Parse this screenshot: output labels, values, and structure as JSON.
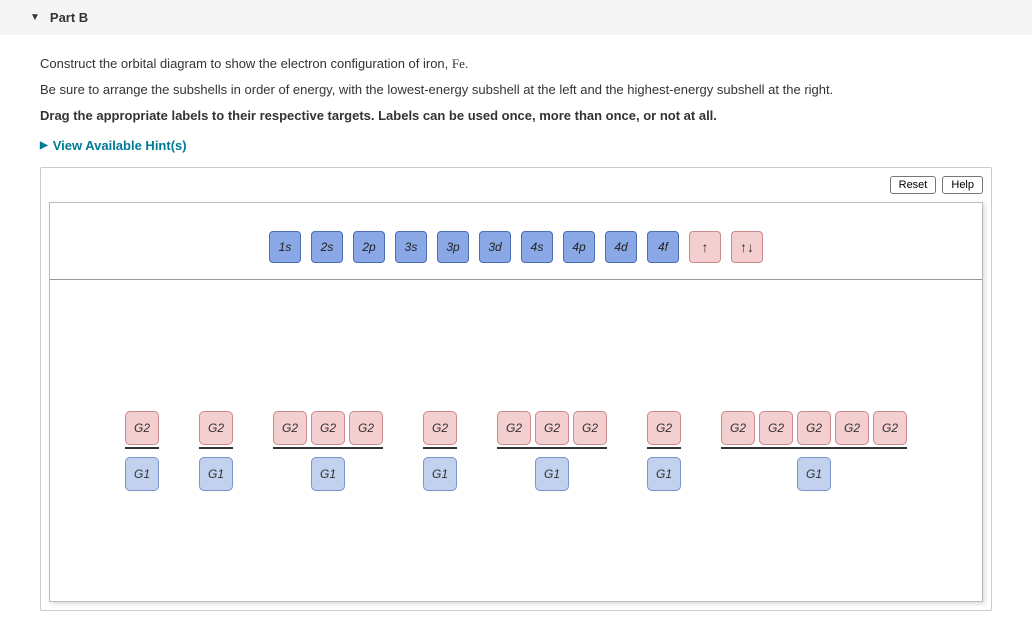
{
  "header": {
    "part_label": "Part B"
  },
  "instructions": {
    "line1_prefix": "Construct the orbital diagram to show the electron configuration of iron, ",
    "element_symbol": "Fe",
    "line1_suffix": ".",
    "line2": "Be sure to arrange the subshells in order of energy, with the lowest-energy subshell at the left and the highest-energy subshell at the right.",
    "line3": "Drag the appropriate labels to their respective targets. Labels can be used once, more than once, or not at all."
  },
  "hints": {
    "toggle_label": "View Available Hint(s)"
  },
  "toolbar": {
    "reset_label": "Reset",
    "help_label": "Help"
  },
  "palette": {
    "subshells": [
      "1s",
      "2s",
      "2p",
      "3s",
      "3p",
      "3d",
      "4s",
      "4p",
      "4d",
      "4f"
    ],
    "arrows": [
      "↑",
      "↑↓"
    ],
    "colors": {
      "subshell_bg": "#8aa8e6",
      "subshell_border": "#4a6db5",
      "arrow_bg": "#f4cfd0",
      "arrow_border": "#c98b8d"
    }
  },
  "drop_groups": [
    {
      "orbitals": 1,
      "top_label": "G2",
      "bottom_label": "G1"
    },
    {
      "orbitals": 1,
      "top_label": "G2",
      "bottom_label": "G1"
    },
    {
      "orbitals": 3,
      "top_label": "G2",
      "bottom_label": "G1"
    },
    {
      "orbitals": 1,
      "top_label": "G2",
      "bottom_label": "G1"
    },
    {
      "orbitals": 3,
      "top_label": "G2",
      "bottom_label": "G1"
    },
    {
      "orbitals": 1,
      "top_label": "G2",
      "bottom_label": "G1"
    },
    {
      "orbitals": 5,
      "top_label": "G2",
      "bottom_label": "G1"
    }
  ],
  "slot_colors": {
    "orbital_bg": "#f4cfd0",
    "orbital_border": "#c98b8d",
    "label_bg": "#c1d1ee",
    "label_border": "#7a95cc"
  }
}
